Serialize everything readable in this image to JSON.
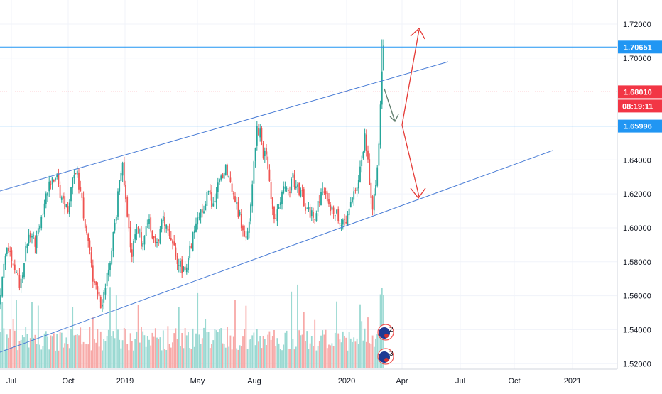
{
  "chart_data": {
    "type": "candlestick",
    "x_ticks": [
      "Jul",
      "Oct",
      "2019",
      "May",
      "Aug",
      "2020",
      "Apr",
      "Jul",
      "Oct",
      "2021"
    ],
    "y_ticks": [
      "1.72000",
      "1.70000",
      "1.64000",
      "1.62000",
      "1.60000",
      "1.58000",
      "1.56000",
      "1.54000",
      "1.52000"
    ],
    "ylim": [
      1.518,
      1.728
    ],
    "price_levels": [
      {
        "label": "1.70651",
        "value": 1.70651,
        "color": "#2196f3"
      },
      {
        "label": "1.68010",
        "value": 1.6801,
        "color": "#f23645"
      },
      {
        "label": "1.65996",
        "value": 1.65996,
        "color": "#2196f3"
      }
    ],
    "countdown": "08:19:11",
    "event_markers": [
      "2",
      "3"
    ],
    "colors": {
      "up": "#26a69a",
      "down": "#ef5350",
      "trendline": "#2962ff",
      "arrow_red": "#e53935",
      "arrow_gray": "#607d6b"
    },
    "anchors": [
      [
        0,
        1.555
      ],
      [
        4,
        1.575
      ],
      [
        12,
        1.588
      ],
      [
        20,
        1.578
      ],
      [
        28,
        1.565
      ],
      [
        36,
        1.585
      ],
      [
        44,
        1.6
      ],
      [
        50,
        1.59
      ],
      [
        56,
        1.605
      ],
      [
        64,
        1.618
      ],
      [
        70,
        1.625
      ],
      [
        78,
        1.632
      ],
      [
        84,
        1.622
      ],
      [
        90,
        1.615
      ],
      [
        96,
        1.61
      ],
      [
        102,
        1.628
      ],
      [
        108,
        1.632
      ],
      [
        114,
        1.618
      ],
      [
        120,
        1.6
      ],
      [
        126,
        1.585
      ],
      [
        132,
        1.568
      ],
      [
        138,
        1.558
      ],
      [
        144,
        1.552
      ],
      [
        150,
        1.57
      ],
      [
        156,
        1.585
      ],
      [
        162,
        1.6
      ],
      [
        168,
        1.63
      ],
      [
        172,
        1.638
      ],
      [
        176,
        1.62
      ],
      [
        180,
        1.6
      ],
      [
        186,
        1.585
      ],
      [
        192,
        1.598
      ],
      [
        200,
        1.592
      ],
      [
        210,
        1.603
      ],
      [
        220,
        1.59
      ],
      [
        230,
        1.605
      ],
      [
        240,
        1.594
      ],
      [
        250,
        1.58
      ],
      [
        260,
        1.574
      ],
      [
        268,
        1.588
      ],
      [
        276,
        1.6
      ],
      [
        284,
        1.61
      ],
      [
        292,
        1.62
      ],
      [
        300,
        1.612
      ],
      [
        308,
        1.625
      ],
      [
        316,
        1.635
      ],
      [
        322,
        1.632
      ],
      [
        328,
        1.62
      ],
      [
        334,
        1.612
      ],
      [
        340,
        1.602
      ],
      [
        346,
        1.595
      ],
      [
        352,
        1.61
      ],
      [
        356,
        1.632
      ],
      [
        362,
        1.66
      ],
      [
        366,
        1.655
      ],
      [
        370,
        1.645
      ],
      [
        376,
        1.64
      ],
      [
        380,
        1.625
      ],
      [
        384,
        1.61
      ],
      [
        388,
        1.605
      ],
      [
        394,
        1.615
      ],
      [
        400,
        1.625
      ],
      [
        406,
        1.618
      ],
      [
        412,
        1.63
      ],
      [
        418,
        1.625
      ],
      [
        424,
        1.62
      ],
      [
        430,
        1.614
      ],
      [
        436,
        1.608
      ],
      [
        442,
        1.605
      ],
      [
        448,
        1.615
      ],
      [
        454,
        1.625
      ],
      [
        460,
        1.62
      ],
      [
        466,
        1.612
      ],
      [
        472,
        1.61
      ],
      [
        478,
        1.605
      ],
      [
        484,
        1.6
      ],
      [
        490,
        1.61
      ],
      [
        496,
        1.618
      ],
      [
        502,
        1.625
      ],
      [
        506,
        1.632
      ],
      [
        510,
        1.645
      ],
      [
        514,
        1.655
      ],
      [
        518,
        1.64
      ],
      [
        522,
        1.615
      ],
      [
        526,
        1.612
      ],
      [
        530,
        1.632
      ],
      [
        534,
        1.655
      ],
      [
        538,
        1.69
      ],
      [
        540,
        1.705
      ],
      [
        542,
        1.68
      ]
    ]
  },
  "labels": {
    "countdown_text": "08:19:11"
  }
}
